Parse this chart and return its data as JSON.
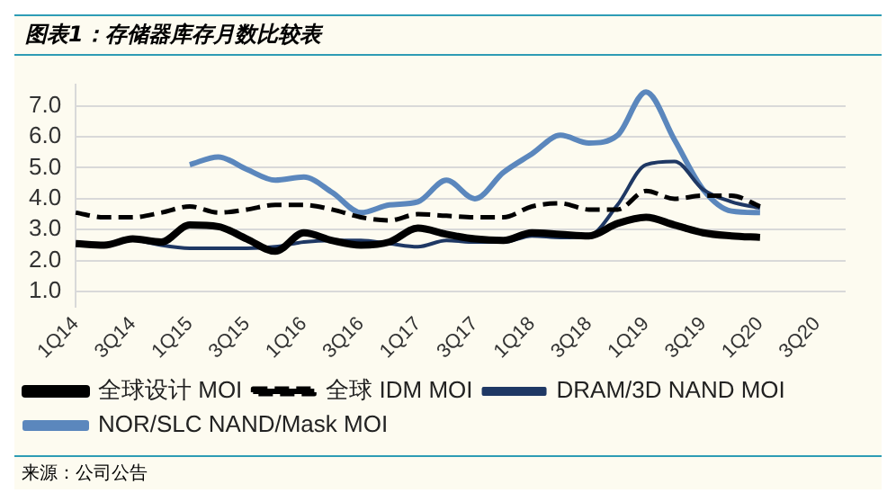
{
  "chart_data": {
    "type": "line",
    "title": "图表1：存储器库存月数比较表",
    "annotations": [
      "来源：公司公告"
    ],
    "categories": [
      "1Q14",
      null,
      "3Q14",
      null,
      "1Q15",
      null,
      "3Q15",
      null,
      "1Q16",
      null,
      "3Q16",
      null,
      "1Q17",
      null,
      "3Q17",
      null,
      "1Q18",
      null,
      "3Q18",
      null,
      "1Q19",
      null,
      "3Q19",
      null,
      "1Q20",
      null,
      "3Q20",
      null
    ],
    "series": [
      {
        "name": "全球设计 MOI",
        "color": "#000000",
        "line_style": "solid",
        "values": [
          2.55,
          2.5,
          2.7,
          2.6,
          3.15,
          3.1,
          2.7,
          2.3,
          2.9,
          2.65,
          2.5,
          2.6,
          3.05,
          2.85,
          2.7,
          2.65,
          2.9,
          2.85,
          2.8,
          3.2,
          3.4,
          3.15,
          2.9,
          2.8,
          2.75,
          null,
          null,
          null
        ]
      },
      {
        "name": "全球 IDM MOI",
        "color": "#000000",
        "line_style": "dashed",
        "values": [
          3.55,
          3.4,
          3.4,
          3.55,
          3.75,
          3.55,
          3.65,
          3.8,
          3.8,
          3.65,
          3.4,
          3.3,
          3.5,
          3.45,
          3.4,
          3.4,
          3.75,
          3.85,
          3.65,
          3.65,
          4.25,
          4.0,
          4.1,
          4.1,
          3.75,
          null,
          null,
          null
        ]
      },
      {
        "name": "DRAM/3D NAND MOI",
        "color": "#1f3864",
        "line_style": "solid",
        "values": [
          null,
          null,
          2.7,
          2.5,
          2.4,
          2.4,
          2.4,
          2.45,
          2.6,
          2.65,
          2.65,
          2.55,
          2.45,
          2.65,
          2.6,
          2.6,
          2.8,
          2.75,
          2.8,
          3.8,
          5.1,
          5.2,
          4.3,
          3.9,
          3.7,
          null,
          null,
          null
        ]
      },
      {
        "name": "NOR/SLC NAND/Mask MOI",
        "color": "#5b87bd",
        "line_style": "solid",
        "values": [
          null,
          null,
          null,
          null,
          5.1,
          5.35,
          4.95,
          4.6,
          4.7,
          4.2,
          3.55,
          3.8,
          3.9,
          4.6,
          4.0,
          4.85,
          5.45,
          6.05,
          5.8,
          6.05,
          7.45,
          5.9,
          4.3,
          3.6,
          3.55,
          null,
          null,
          null
        ]
      }
    ],
    "ylim": [
      0.5,
      7.7
    ],
    "yticks": [
      {
        "value": 1,
        "label": "1.0"
      },
      {
        "value": 2,
        "label": "2.0"
      },
      {
        "value": 3,
        "label": "3.0"
      },
      {
        "value": 4,
        "label": "4.0"
      },
      {
        "value": 5,
        "label": "5.0"
      },
      {
        "value": 6,
        "label": "6.0"
      },
      {
        "value": 7,
        "label": "7.0"
      }
    ],
    "grid": "y",
    "legend": "bottom",
    "marker": "none"
  }
}
